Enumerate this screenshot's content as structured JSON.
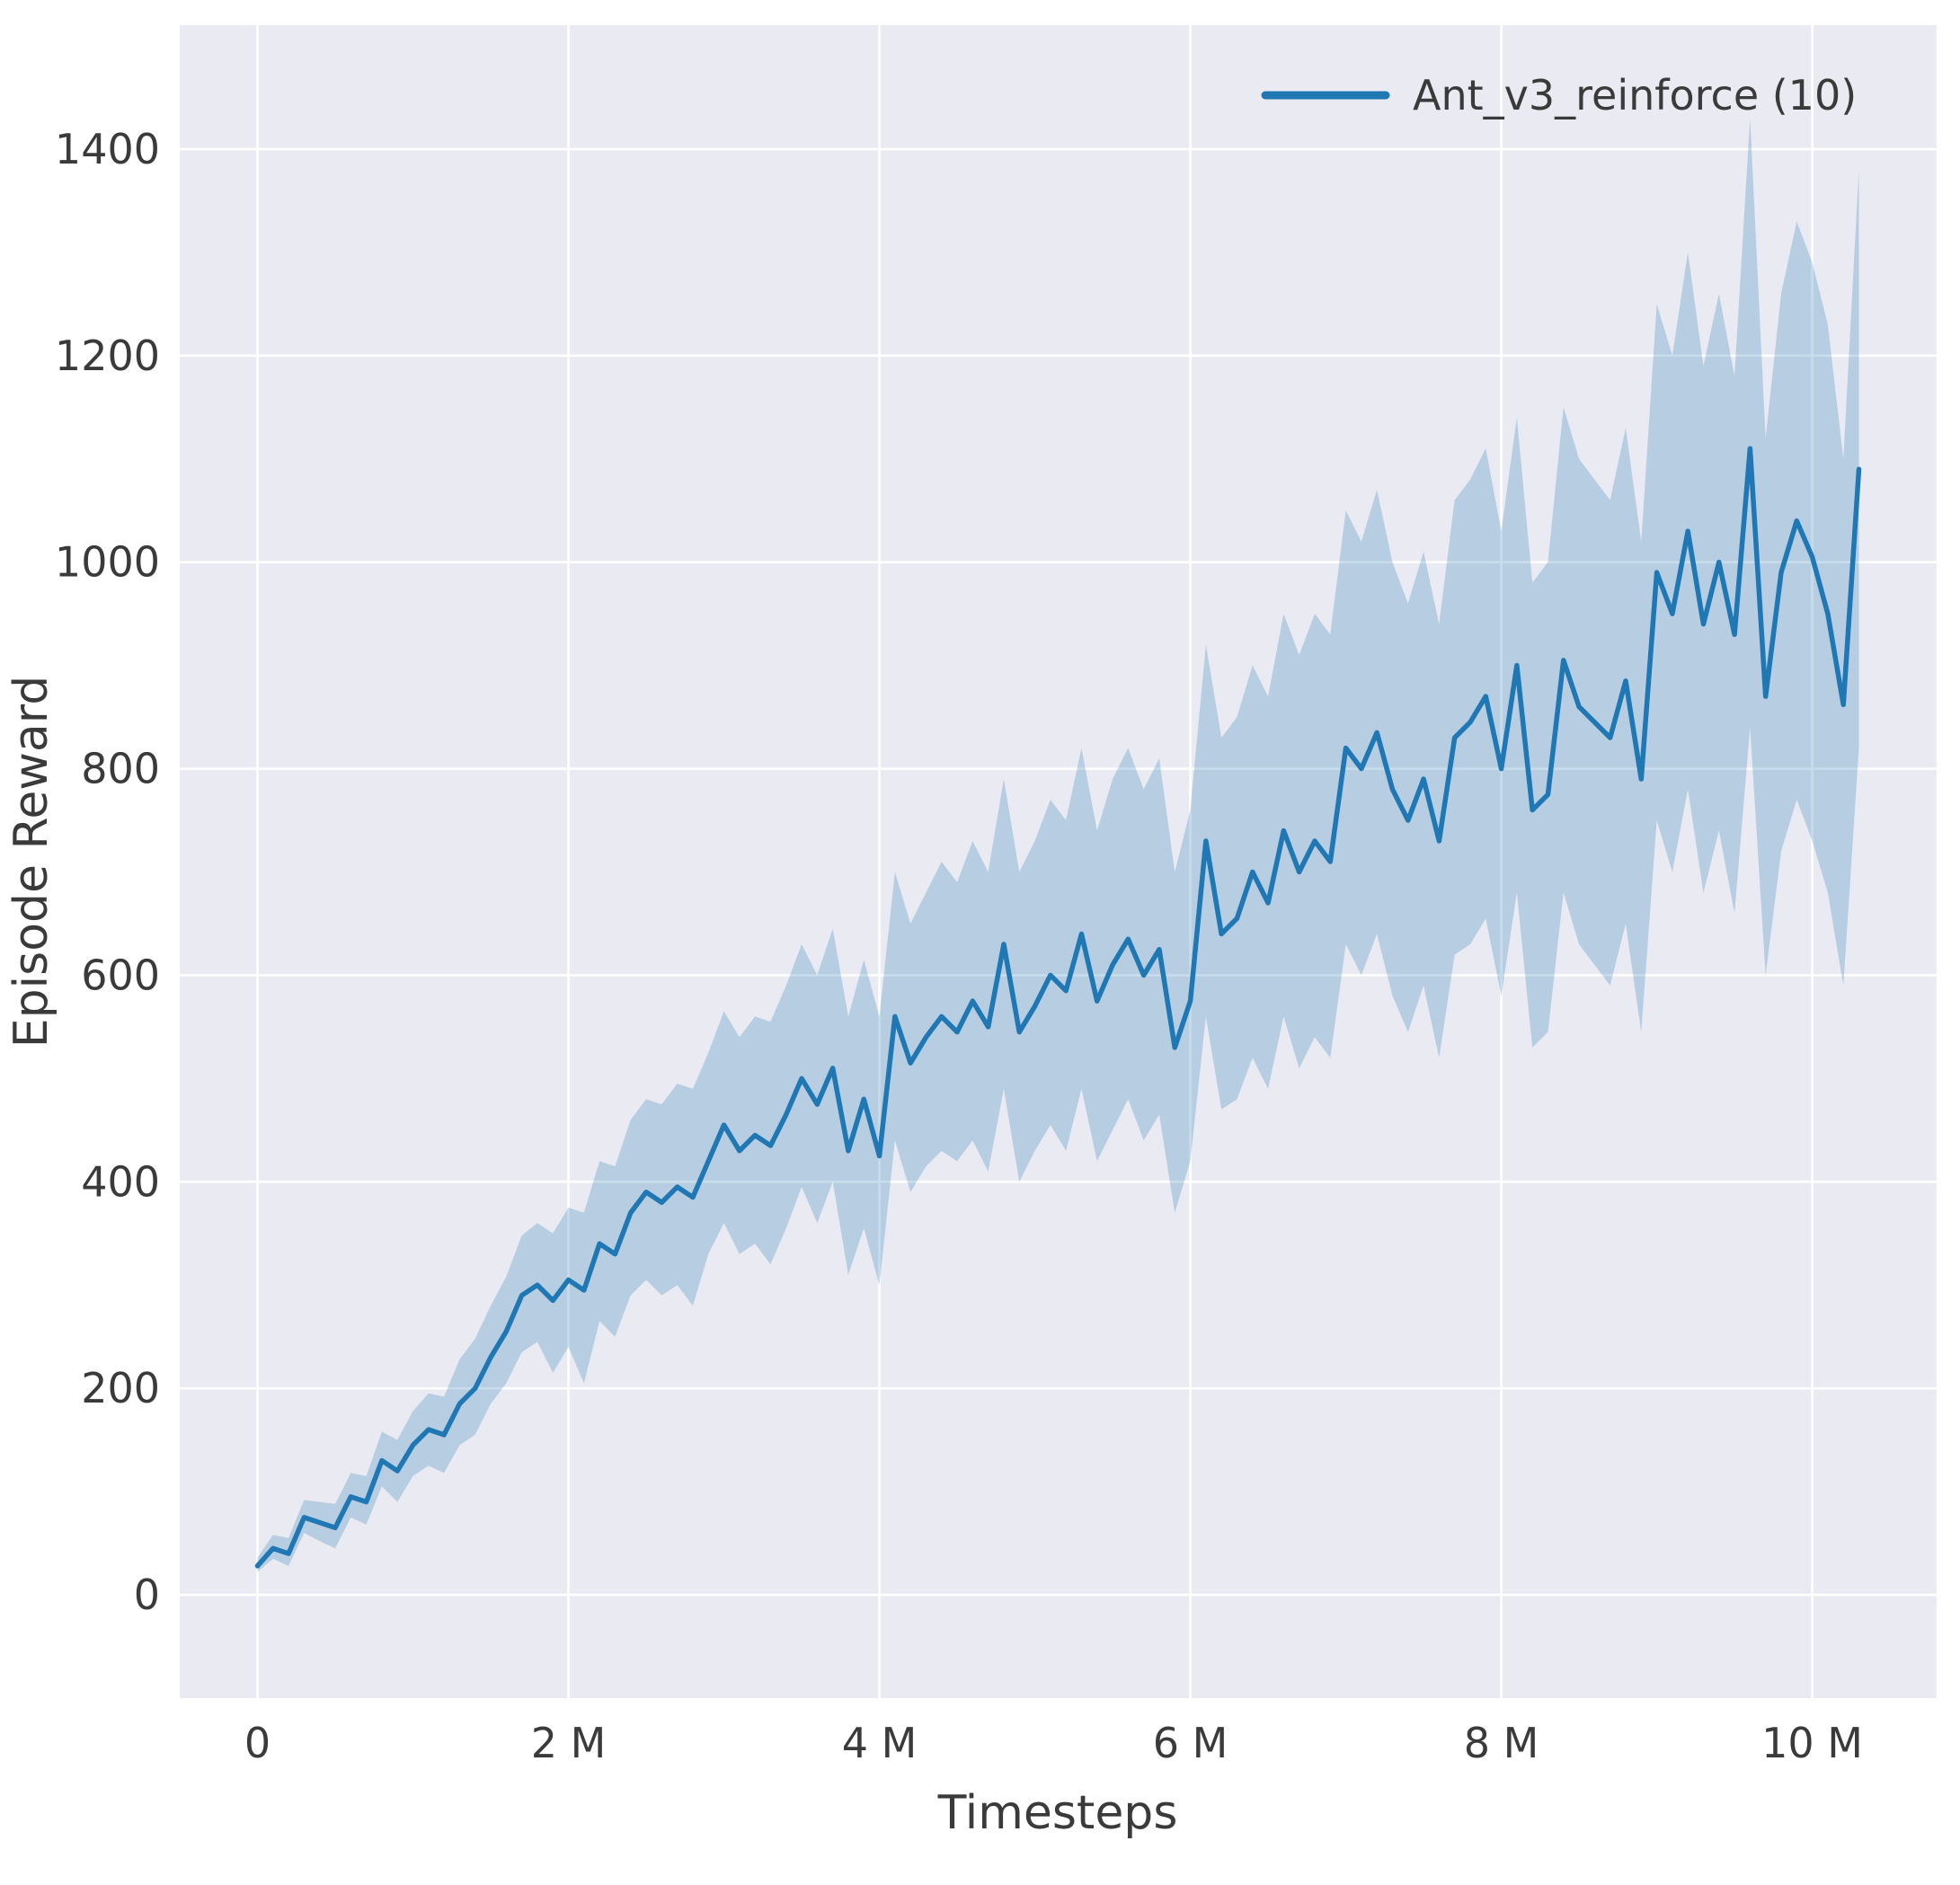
{
  "figure": {
    "legend_label": "Ant_v3_reinforce (10)",
    "xlabel": "Timesteps",
    "ylabel": "Episode Reward"
  },
  "chart_data": {
    "type": "line",
    "title": "",
    "xlabel": "Timesteps",
    "ylabel": "Episode Reward",
    "x_units": "millions of timesteps",
    "xlim": [
      -0.5,
      10.8
    ],
    "ylim": [
      -100,
      1520
    ],
    "grid": true,
    "legend_position": "upper right",
    "xticks": {
      "values": [
        0,
        2,
        4,
        6,
        8,
        10
      ],
      "labels": [
        "0",
        "2 M",
        "4 M",
        "6 M",
        "8 M",
        "10 M"
      ]
    },
    "yticks": {
      "values": [
        0,
        200,
        400,
        600,
        800,
        1000,
        1200,
        1400
      ],
      "labels": [
        "0",
        "200",
        "400",
        "600",
        "800",
        "1000",
        "1200",
        "1400"
      ]
    },
    "styles": {
      "plot_bg": "#eaeaf2",
      "grid_color": "#ffffff",
      "line_color": "#1f77b4",
      "band_opacity": 0.25,
      "text_color": "#3a3a3a"
    },
    "series": [
      {
        "name": "Ant_v3_reinforce (10)",
        "color": "#1f77b4",
        "x": [
          0.0,
          0.1,
          0.2,
          0.3,
          0.4,
          0.5,
          0.6,
          0.7,
          0.8,
          0.9,
          1.0,
          1.1,
          1.2,
          1.3,
          1.4,
          1.5,
          1.6,
          1.7,
          1.8,
          1.9,
          2.0,
          2.1,
          2.2,
          2.3,
          2.4,
          2.5,
          2.6,
          2.7,
          2.8,
          2.9,
          3.0,
          3.1,
          3.2,
          3.3,
          3.4,
          3.5,
          3.6,
          3.7,
          3.8,
          3.9,
          4.0,
          4.1,
          4.2,
          4.3,
          4.4,
          4.5,
          4.6,
          4.7,
          4.8,
          4.9,
          5.0,
          5.1,
          5.2,
          5.3,
          5.4,
          5.5,
          5.6,
          5.7,
          5.8,
          5.9,
          6.0,
          6.1,
          6.2,
          6.3,
          6.4,
          6.5,
          6.6,
          6.7,
          6.8,
          6.9,
          7.0,
          7.1,
          7.2,
          7.3,
          7.4,
          7.5,
          7.6,
          7.7,
          7.8,
          7.9,
          8.0,
          8.1,
          8.2,
          8.3,
          8.4,
          8.5,
          8.6,
          8.7,
          8.8,
          8.9,
          9.0,
          9.1,
          9.2,
          9.3,
          9.4,
          9.5,
          9.6,
          9.7,
          9.8,
          9.9,
          10.0,
          10.1,
          10.2,
          10.3
        ],
        "mean": [
          28,
          45,
          40,
          75,
          70,
          65,
          95,
          90,
          130,
          120,
          145,
          160,
          155,
          185,
          200,
          230,
          255,
          290,
          300,
          285,
          305,
          295,
          340,
          330,
          370,
          390,
          380,
          395,
          385,
          420,
          455,
          430,
          445,
          435,
          465,
          500,
          475,
          510,
          430,
          480,
          425,
          560,
          515,
          540,
          560,
          545,
          575,
          550,
          630,
          545,
          570,
          600,
          585,
          640,
          575,
          610,
          635,
          600,
          625,
          530,
          575,
          730,
          640,
          655,
          700,
          670,
          740,
          700,
          730,
          710,
          820,
          800,
          835,
          780,
          750,
          790,
          730,
          830,
          845,
          870,
          800,
          900,
          760,
          775,
          905,
          860,
          845,
          830,
          885,
          790,
          990,
          950,
          1030,
          940,
          1000,
          930,
          1110,
          870,
          990,
          1040,
          1005,
          950,
          862,
          1090
        ],
        "lower": [
          22,
          35,
          28,
          60,
          52,
          45,
          75,
          68,
          105,
          90,
          115,
          125,
          118,
          145,
          155,
          185,
          205,
          235,
          245,
          215,
          240,
          205,
          265,
          250,
          290,
          305,
          290,
          300,
          280,
          330,
          360,
          330,
          340,
          320,
          355,
          395,
          360,
          400,
          310,
          355,
          300,
          440,
          390,
          415,
          430,
          420,
          440,
          410,
          490,
          400,
          430,
          455,
          430,
          490,
          420,
          450,
          480,
          440,
          465,
          370,
          420,
          560,
          470,
          480,
          520,
          490,
          560,
          510,
          540,
          520,
          630,
          600,
          640,
          580,
          545,
          590,
          520,
          620,
          630,
          655,
          580,
          680,
          530,
          545,
          680,
          630,
          610,
          590,
          650,
          545,
          750,
          700,
          780,
          680,
          740,
          660,
          840,
          600,
          720,
          770,
          730,
          680,
          590,
          820
        ],
        "upper": [
          36,
          58,
          55,
          92,
          90,
          88,
          118,
          115,
          158,
          150,
          178,
          195,
          192,
          228,
          248,
          280,
          308,
          348,
          360,
          350,
          375,
          370,
          420,
          415,
          460,
          480,
          475,
          495,
          490,
          525,
          565,
          540,
          560,
          555,
          590,
          630,
          600,
          645,
          560,
          615,
          560,
          700,
          650,
          680,
          710,
          690,
          730,
          700,
          790,
          700,
          730,
          770,
          750,
          820,
          740,
          790,
          820,
          780,
          810,
          700,
          760,
          920,
          830,
          850,
          900,
          870,
          950,
          910,
          950,
          930,
          1050,
          1020,
          1070,
          1000,
          960,
          1010,
          940,
          1060,
          1080,
          1110,
          1030,
          1140,
          980,
          1000,
          1150,
          1100,
          1080,
          1060,
          1130,
          1020,
          1250,
          1200,
          1300,
          1190,
          1260,
          1180,
          1430,
          1120,
          1260,
          1330,
          1290,
          1230,
          1100,
          1380
        ]
      }
    ]
  }
}
